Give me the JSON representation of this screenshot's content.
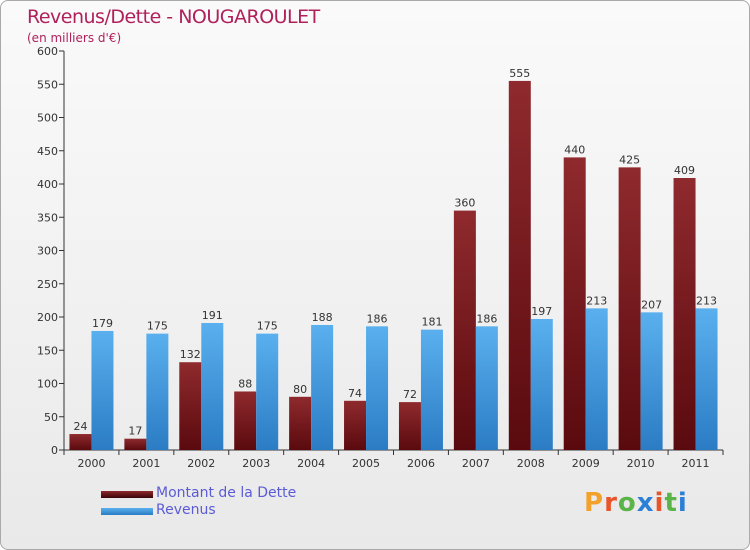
{
  "header": {
    "title": "Revenus/Dette - NOUGAROULET",
    "subtitle": "(en milliers d'€)"
  },
  "colors": {
    "dette": "#7a1a1e",
    "revenus": "#4aa3e6",
    "title": "#b0205a",
    "legend_text": "#5b5bd6"
  },
  "legend": {
    "dette_label": "Montant de la Dette",
    "revenus_label": "Revenus"
  },
  "brand": {
    "letters": [
      "P",
      "r",
      "o",
      "x",
      "i",
      "t",
      "i"
    ],
    "colors": [
      "#f2a12b",
      "#e9542a",
      "#5ab44a",
      "#2b7fd6",
      "#e9542a",
      "#5ab44a",
      "#2b7fd6"
    ]
  },
  "chart_data": {
    "type": "bar",
    "title": "Revenus/Dette - NOUGAROULET",
    "subtitle": "(en milliers d'€)",
    "xlabel": "",
    "ylabel": "",
    "ylim": [
      0,
      600
    ],
    "yticks": [
      0,
      50,
      100,
      150,
      200,
      250,
      300,
      350,
      400,
      450,
      500,
      550,
      600
    ],
    "grid": false,
    "legend_position": "bottom-left",
    "categories": [
      "2000",
      "2001",
      "2002",
      "2003",
      "2004",
      "2005",
      "2006",
      "2007",
      "2008",
      "2009",
      "2010",
      "2011"
    ],
    "series": [
      {
        "name": "Montant de la Dette",
        "values": [
          24,
          17,
          132,
          88,
          80,
          74,
          72,
          360,
          555,
          440,
          425,
          409
        ]
      },
      {
        "name": "Revenus",
        "values": [
          179,
          175,
          191,
          175,
          188,
          186,
          181,
          186,
          197,
          213,
          207,
          213
        ]
      }
    ]
  }
}
